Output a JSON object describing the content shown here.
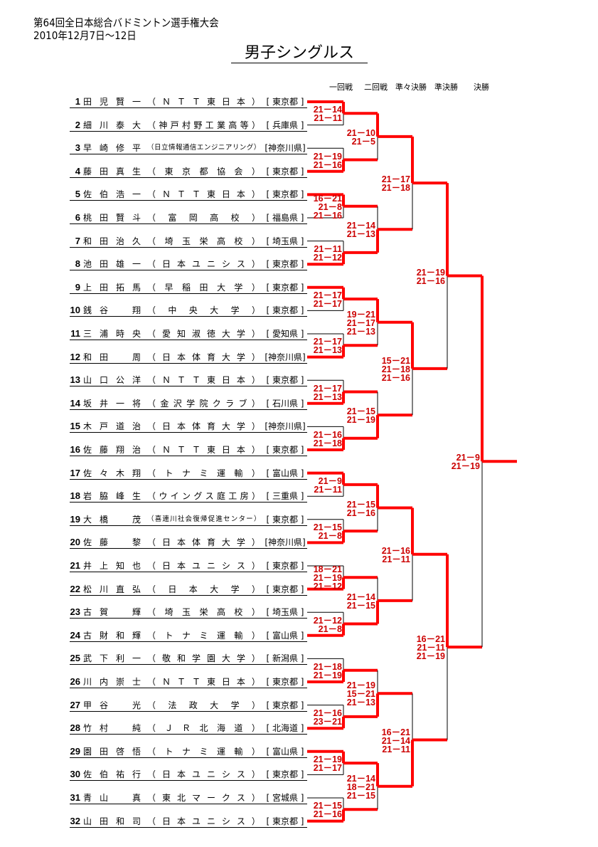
{
  "header": {
    "tournament": "第64回全日本総合バドミントン選手権大会",
    "dates": "2010年12月7日～12日",
    "event": "男子シングルス",
    "rounds": [
      "一回戦",
      "二回戦",
      "準々決勝",
      "準決勝",
      "決勝"
    ]
  },
  "colors": {
    "winner_line": "#ff0000",
    "score_text": "#cc0000",
    "loser_line": "#000000"
  },
  "players": [
    {
      "seed": "1",
      "name": "田児 賢一",
      "team": "ＮＴＴ東日本",
      "pref": "[ 東京都 ]"
    },
    {
      "seed": "2",
      "name": "細川 泰大",
      "team": "神戸村野工業高等",
      "pref": "[ 兵庫県 ]"
    },
    {
      "seed": "3",
      "name": "早崎 修平",
      "team": "日立情報通信エンジニアリング",
      "pref": "[神奈川県]"
    },
    {
      "seed": "4",
      "name": "藤田 真生",
      "team": "東京都協会",
      "pref": "[ 東京都 ]"
    },
    {
      "seed": "5",
      "name": "佐伯 浩一",
      "team": "ＮＴＴ東日本",
      "pref": "[ 東京都 ]"
    },
    {
      "seed": "6",
      "name": "桃田 賢斗",
      "team": "富岡高校",
      "pref": "[ 福島県 ]"
    },
    {
      "seed": "7",
      "name": "和田 治久",
      "team": "埼玉栄高校",
      "pref": "[ 埼玉県 ]"
    },
    {
      "seed": "8",
      "name": "池田 雄一",
      "team": "日本ユニシス",
      "pref": "[ 東京都 ]"
    },
    {
      "seed": "9",
      "name": "上田 拓馬",
      "team": "早稲田大学",
      "pref": "[ 東京都 ]"
    },
    {
      "seed": "10",
      "name": "銭谷 翔",
      "team": "中央大学",
      "pref": "[ 東京都 ]"
    },
    {
      "seed": "11",
      "name": "三浦 時央",
      "team": "愛知淑徳大学",
      "pref": "[ 愛知県 ]"
    },
    {
      "seed": "12",
      "name": "和田 周",
      "team": "日本体育大学",
      "pref": "[神奈川県]"
    },
    {
      "seed": "13",
      "name": "山口 公洋",
      "team": "ＮＴＴ東日本",
      "pref": "[ 東京都 ]"
    },
    {
      "seed": "14",
      "name": "坂井 一将",
      "team": "金沢学院クラブ",
      "pref": "[ 石川県 ]"
    },
    {
      "seed": "15",
      "name": "木戸 道治",
      "team": "日本体育大学",
      "pref": "[神奈川県]"
    },
    {
      "seed": "16",
      "name": "佐藤 翔治",
      "team": "ＮＴＴ東日本",
      "pref": "[ 東京都 ]"
    },
    {
      "seed": "17",
      "name": "佐々木 翔",
      "team": "トナミ運輸",
      "pref": "[ 富山県 ]"
    },
    {
      "seed": "18",
      "name": "岩脇 峰生",
      "team": "ウイングス庭工房",
      "pref": "[ 三重県 ]"
    },
    {
      "seed": "19",
      "name": "大橋 茂",
      "team": "喜連川社会復帰促進センター",
      "pref": "[ 東京都 ]"
    },
    {
      "seed": "20",
      "name": "佐藤 黎",
      "team": "日本体育大学",
      "pref": "[神奈川県]"
    },
    {
      "seed": "21",
      "name": "井上 知也",
      "team": "日本ユニシス",
      "pref": "[ 東京都 ]"
    },
    {
      "seed": "22",
      "name": "松川 直弘",
      "team": "日本大学",
      "pref": "[ 東京都 ]"
    },
    {
      "seed": "23",
      "name": "古賀 輝",
      "team": "埼玉栄高校",
      "pref": "[ 埼玉県 ]"
    },
    {
      "seed": "24",
      "name": "古財 和輝",
      "team": "トナミ運輸",
      "pref": "[ 富山県 ]"
    },
    {
      "seed": "25",
      "name": "武下 利一",
      "team": "敬和学園大学",
      "pref": "[ 新潟県 ]"
    },
    {
      "seed": "26",
      "name": "川内 崇士",
      "team": "ＮＴＴ東日本",
      "pref": "[ 東京都 ]"
    },
    {
      "seed": "27",
      "name": "甲谷 光",
      "team": "法政大学",
      "pref": "[ 東京都 ]"
    },
    {
      "seed": "28",
      "name": "竹村 純",
      "team": "ＪＲ北海道",
      "pref": "[ 北海道 ]"
    },
    {
      "seed": "29",
      "name": "園田 啓悟",
      "team": "トナミ運輸",
      "pref": "[ 富山県 ]"
    },
    {
      "seed": "30",
      "name": "佐伯 祐行",
      "team": "日本ユニシス",
      "pref": "[ 東京都 ]"
    },
    {
      "seed": "31",
      "name": "青山 真",
      "team": "東北マークス",
      "pref": "[ 宮城県 ]"
    },
    {
      "seed": "32",
      "name": "山田 和司",
      "team": "日本ユニシス",
      "pref": "[ 東京都 ]"
    }
  ],
  "bracket": {
    "winners": [
      [
        1,
        4,
        5,
        8,
        9,
        12,
        14,
        16,
        17,
        20,
        22,
        24,
        26,
        28,
        29,
        32
      ],
      [
        1,
        8,
        9,
        16,
        17,
        24,
        28,
        29
      ],
      [
        1,
        9,
        17,
        29
      ],
      [
        1,
        17
      ],
      [
        1
      ]
    ],
    "scores": [
      [
        [
          "21－14",
          "21－11"
        ],
        [
          "21－19",
          "21－16"
        ],
        [
          "16－21",
          "21－8",
          "21－16"
        ],
        [
          "21－11",
          "21－12"
        ],
        [
          "21－17",
          "21－17"
        ],
        [
          "21－17",
          "21－13"
        ],
        [
          "21－17",
          "21－13"
        ],
        [
          "21－16",
          "21－18"
        ],
        [
          "21－9",
          "21－11"
        ],
        [
          "21－15",
          "21－8"
        ],
        [
          "18－21",
          "21－19",
          "21－12"
        ],
        [
          "21－12",
          "21－8"
        ],
        [
          "21－18",
          "21－19"
        ],
        [
          "21－16",
          "23－21"
        ],
        [
          "21－19",
          "21－17"
        ],
        [
          "21－15",
          "21－16"
        ]
      ],
      [
        [
          "21－10",
          "21－5"
        ],
        [
          "21－14",
          "21－13"
        ],
        [
          "19－21",
          "21－17",
          "21－13"
        ],
        [
          "21－15",
          "21－19"
        ],
        [
          "21－15",
          "21－16"
        ],
        [
          "21－14",
          "21－15"
        ],
        [
          "21－19",
          "15－21",
          "21－13"
        ],
        [
          "21－14",
          "18－21",
          "21－15"
        ]
      ],
      [
        [
          "21－17",
          "21－18"
        ],
        [
          "15－21",
          "21－18",
          "21－16"
        ],
        [
          "21－16",
          "21－11"
        ],
        [
          "16－21",
          "21－14",
          "21－11"
        ]
      ],
      [
        [
          "21－19",
          "21－16"
        ],
        [
          "16－21",
          "21－11",
          "21－19"
        ]
      ],
      [
        [
          "21－9",
          "21－19"
        ]
      ]
    ]
  }
}
